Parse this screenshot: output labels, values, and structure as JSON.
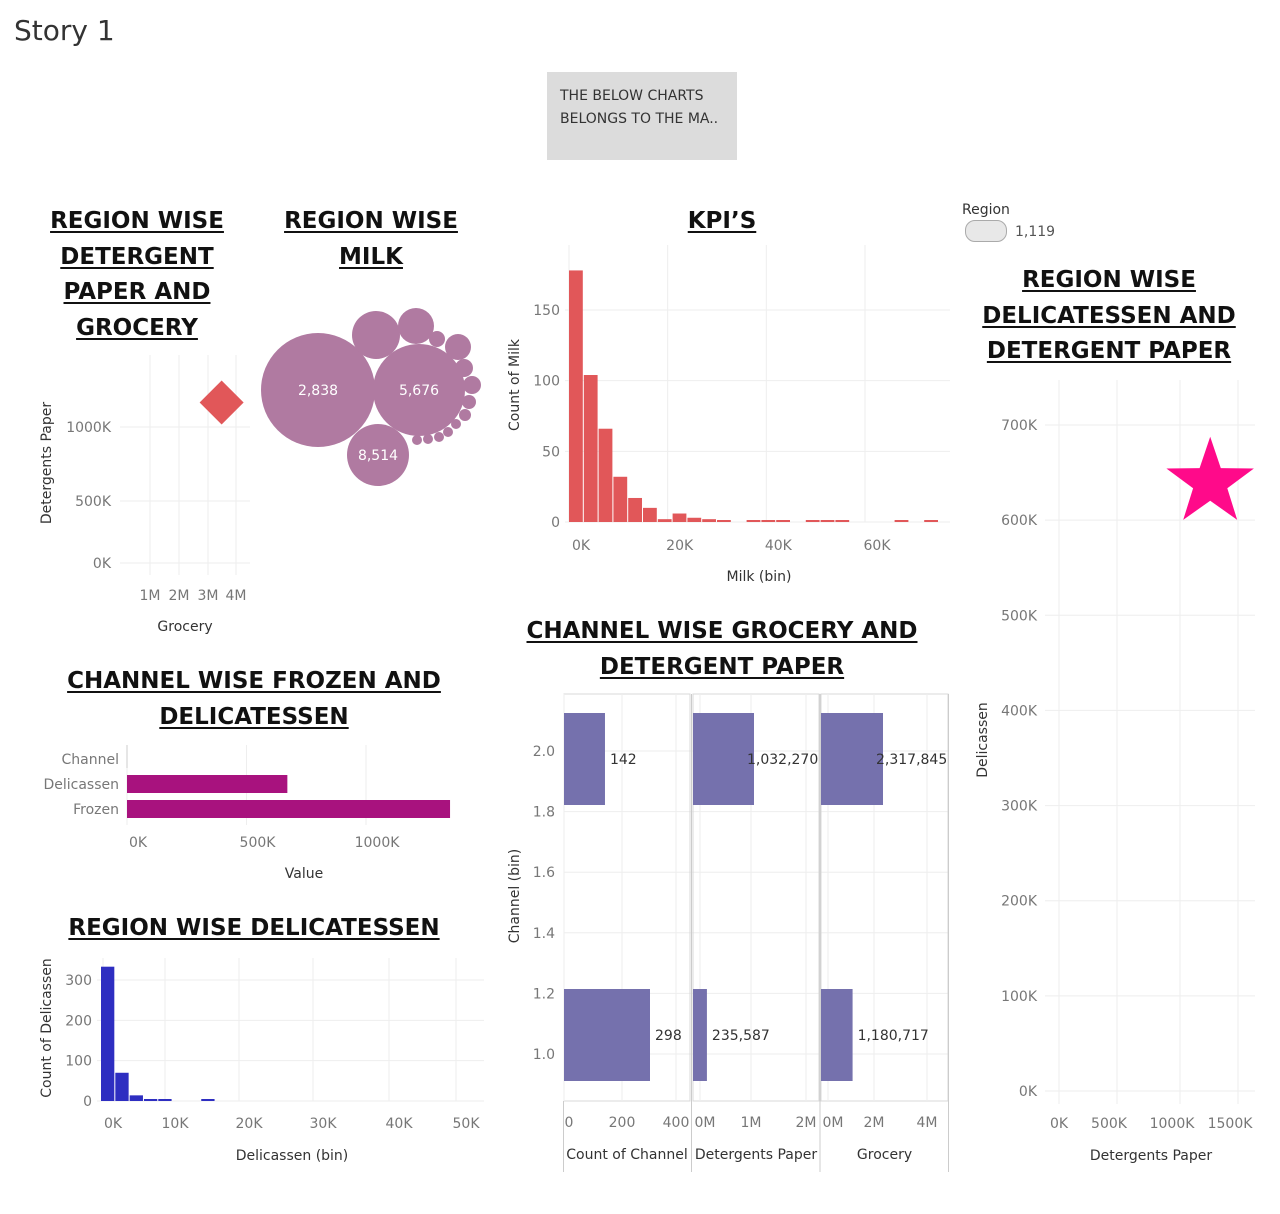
{
  "story": {
    "title": "Story 1"
  },
  "caption": {
    "line1": "THE BELOW CHARTS",
    "line2": "BELONGS TO THE MA.."
  },
  "headings": {
    "det_grocery": [
      "REGION WISE",
      "DETERGENT",
      "PAPER AND",
      "GROCERY"
    ],
    "milk": [
      "REGION WISE",
      "MILK"
    ],
    "kpi": [
      "KPI’S"
    ],
    "deli_det": [
      "REGION WISE",
      "DELICATESSEN AND",
      "DETERGENT PAPER"
    ],
    "frozen_deli": [
      "CHANNEL WISE FROZEN AND",
      "DELICATESSEN"
    ],
    "channel_grocery": [
      "CHANNEL WISE GROCERY AND",
      "DETERGENT PAPER"
    ],
    "region_deli": [
      "REGION WISE DELICATESSEN"
    ]
  },
  "legend": {
    "title": "Region",
    "value": "1,119"
  },
  "colors": {
    "diamond": "#e15759",
    "bubble": "#b07aa1",
    "kpi_bar": "#e15759",
    "frozen_bar": "#a8127e",
    "deli_bar": "#2e2ec1",
    "channel_bar": "#7571ad",
    "star": "#ff0a8a",
    "grid": "#eeeeee",
    "axis_text": "#777777"
  },
  "chart_data": [
    {
      "id": "det_grocery",
      "type": "scatter",
      "mark": "diamond",
      "xlabel": "Grocery",
      "ylabel": "Detergents Paper",
      "xticks": [
        "1M",
        "2M",
        "3M",
        "4M"
      ],
      "yticks": [
        "0K",
        "500K",
        "1000K"
      ],
      "xlim": [
        0,
        4500000
      ],
      "ylim": [
        0,
        1400000
      ],
      "points": [
        {
          "x": 3500000,
          "y": 1180000
        }
      ]
    },
    {
      "id": "milk",
      "type": "bubble",
      "labels": [
        "2,838",
        "5,676",
        "8,514"
      ]
    },
    {
      "id": "kpi",
      "type": "bar",
      "xlabel": "Milk (bin)",
      "ylabel": "Count of Milk",
      "xticks": [
        "0K",
        "20K",
        "40K",
        "60K"
      ],
      "yticks": [
        "0",
        "50",
        "100",
        "150"
      ],
      "xlim": [
        0,
        75000
      ],
      "ylim": [
        0,
        180
      ],
      "bin_width": 3000,
      "values": [
        178,
        104,
        66,
        32,
        17,
        10,
        2,
        6,
        3,
        2,
        1,
        0,
        1,
        1,
        1,
        0,
        1,
        1,
        1,
        0,
        0,
        0,
        1,
        0,
        1
      ]
    },
    {
      "id": "deli_det",
      "type": "scatter",
      "mark": "star",
      "xlabel": "Detergents Paper",
      "ylabel": "Delicassen",
      "xticks": [
        "0K",
        "500K",
        "1000K",
        "1500K"
      ],
      "yticks": [
        "0K",
        "100K",
        "200K",
        "300K",
        "400K",
        "500K",
        "600K",
        "700K"
      ],
      "xlim": [
        0,
        1700000
      ],
      "ylim": [
        0,
        730000
      ],
      "points": [
        {
          "x": 1267000,
          "y": 670900
        }
      ]
    },
    {
      "id": "frozen_deli",
      "type": "bar",
      "orientation": "horizontal",
      "xlabel": "Value",
      "ylabel": "Channel",
      "xticks": [
        "0K",
        "500K",
        "1000K"
      ],
      "xlim": [
        0,
        1380000
      ],
      "categories": [
        "Delicassen",
        "Frozen"
      ],
      "values": [
        670943,
        1351650
      ]
    },
    {
      "id": "channel_grocery",
      "type": "bar",
      "orientation": "horizontal",
      "ylabel": "Channel (bin)",
      "yticks": [
        "1.0",
        "1.2",
        "1.4",
        "1.6",
        "1.8",
        "2.0"
      ],
      "ylim": [
        0.9,
        2.2
      ],
      "panels": [
        {
          "xlabel": "Count of Channel",
          "xticks": [
            "0",
            "200",
            "400"
          ],
          "xlim": [
            0,
            430
          ],
          "bars": [
            {
              "y": 2,
              "value": 142,
              "label": "142"
            },
            {
              "y": 1,
              "value": 298,
              "label": "298"
            }
          ]
        },
        {
          "xlabel": "Detergents Paper",
          "xticks": [
            "0M",
            "1M",
            "2M"
          ],
          "xlim": [
            0,
            2250000
          ],
          "bars": [
            {
              "y": 2,
              "value": 1032270,
              "label": "1,032,270"
            },
            {
              "y": 1,
              "value": 235587,
              "label": "235,587"
            }
          ]
        },
        {
          "xlabel": "Grocery",
          "xticks": [
            "0M",
            "2M",
            "4M"
          ],
          "xlim": [
            0,
            4800000
          ],
          "bars": [
            {
              "y": 2,
              "value": 2317845,
              "label": "2,317,845"
            },
            {
              "y": 1,
              "value": 1180717,
              "label": "1,180,717"
            }
          ]
        }
      ]
    },
    {
      "id": "region_deli",
      "type": "bar",
      "xlabel": "Delicassen (bin)",
      "ylabel": "Count of Delicassen",
      "xticks": [
        "0K",
        "10K",
        "20K",
        "30K",
        "40K",
        "50K"
      ],
      "yticks": [
        "0",
        "100",
        "200",
        "300"
      ],
      "xlim": [
        -1500,
        52000
      ],
      "ylim": [
        0,
        350
      ],
      "bin_width": 2000,
      "values": [
        333,
        70,
        14,
        4,
        1,
        0,
        0,
        1
      ]
    }
  ]
}
